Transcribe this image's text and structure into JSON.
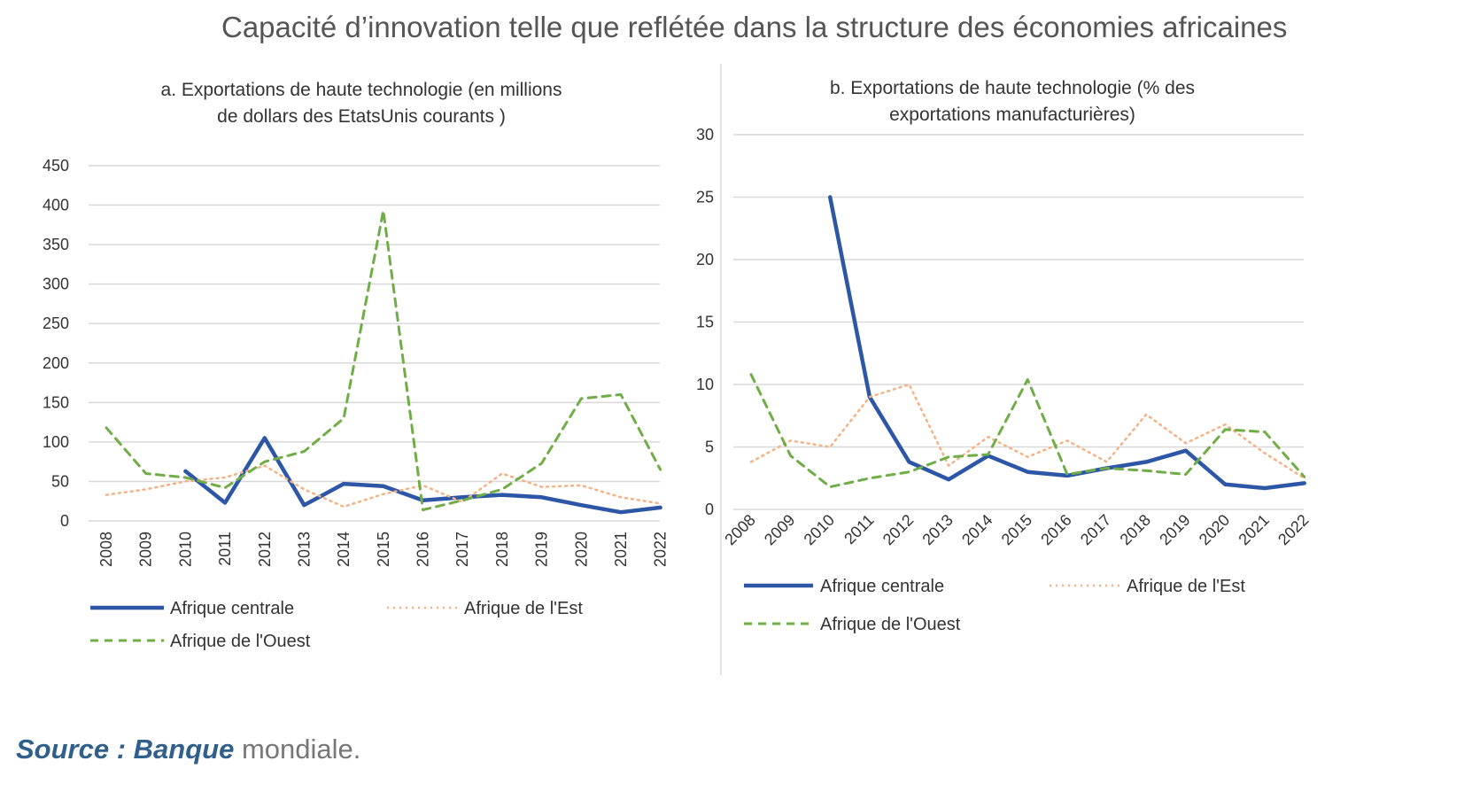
{
  "title": "Capacité d’innovation telle que reflétée dans la structure des économies africaines",
  "source": {
    "prefix": "Source :",
    "org": "Banque",
    "rest": " mondiale."
  },
  "colors": {
    "afrique_centrale": "#2e56a6",
    "afrique_est": "#f4b183",
    "afrique_ouest": "#70ad47",
    "grid": "#d9d9d9",
    "text": "#333333"
  },
  "chart_data": [
    {
      "type": "line",
      "title": [
        "a. Exportations de haute technologie (en millions",
        "de dollars des EtatsUnis courants )"
      ],
      "xlabel": "",
      "ylabel": "",
      "x": [
        "2008",
        "2009",
        "2010",
        "2011",
        "2012",
        "2013",
        "2014",
        "2015",
        "2016",
        "2017",
        "2018",
        "2019",
        "2020",
        "2021",
        "2022"
      ],
      "ylim": [
        0,
        450
      ],
      "yticks": [
        0,
        50,
        100,
        150,
        200,
        250,
        300,
        350,
        400,
        450
      ],
      "grid": true,
      "legend": "bottom",
      "series": [
        {
          "name": "Afrique centrale",
          "style": "solid",
          "values": [
            null,
            null,
            63,
            23,
            105,
            20,
            47,
            44,
            26,
            30,
            33,
            30,
            20,
            11,
            17
          ]
        },
        {
          "name": "Afrique de l'Est",
          "style": "dotted",
          "values": [
            33,
            40,
            50,
            55,
            70,
            40,
            18,
            34,
            45,
            24,
            60,
            43,
            45,
            30,
            22
          ]
        },
        {
          "name": "Afrique de l'Ouest",
          "style": "dashed",
          "values": [
            118,
            60,
            55,
            42,
            75,
            88,
            130,
            393,
            14,
            26,
            40,
            73,
            155,
            160,
            65
          ]
        }
      ]
    },
    {
      "type": "line",
      "title": [
        "b. Exportations de haute technologie (% des",
        "exportations manufacturières)"
      ],
      "xlabel": "",
      "ylabel": "",
      "x": [
        "2008",
        "2009",
        "2010",
        "2011",
        "2012",
        "2013",
        "2014",
        "2015",
        "2016",
        "2017",
        "2018",
        "2019",
        "2020",
        "2021",
        "2022"
      ],
      "ylim": [
        0,
        30
      ],
      "yticks": [
        0,
        5,
        10,
        15,
        20,
        25,
        30
      ],
      "grid": true,
      "legend": "bottom",
      "series": [
        {
          "name": "Afrique centrale",
          "style": "solid",
          "values": [
            null,
            null,
            25,
            9,
            3.8,
            2.4,
            4.3,
            3.0,
            2.7,
            3.3,
            3.8,
            4.7,
            2.0,
            1.7,
            2.1
          ]
        },
        {
          "name": "Afrique de l'Est",
          "style": "dotted",
          "values": [
            3.8,
            5.5,
            5.0,
            9.0,
            10.0,
            3.5,
            5.8,
            4.2,
            5.5,
            3.8,
            7.6,
            5.3,
            6.8,
            4.5,
            2.5
          ]
        },
        {
          "name": "Afrique de l'Ouest",
          "style": "dashed",
          "values": [
            10.8,
            4.3,
            1.8,
            2.5,
            3.0,
            4.2,
            4.4,
            10.4,
            2.8,
            3.3,
            3.1,
            2.8,
            6.4,
            6.2,
            2.6
          ]
        }
      ]
    }
  ]
}
